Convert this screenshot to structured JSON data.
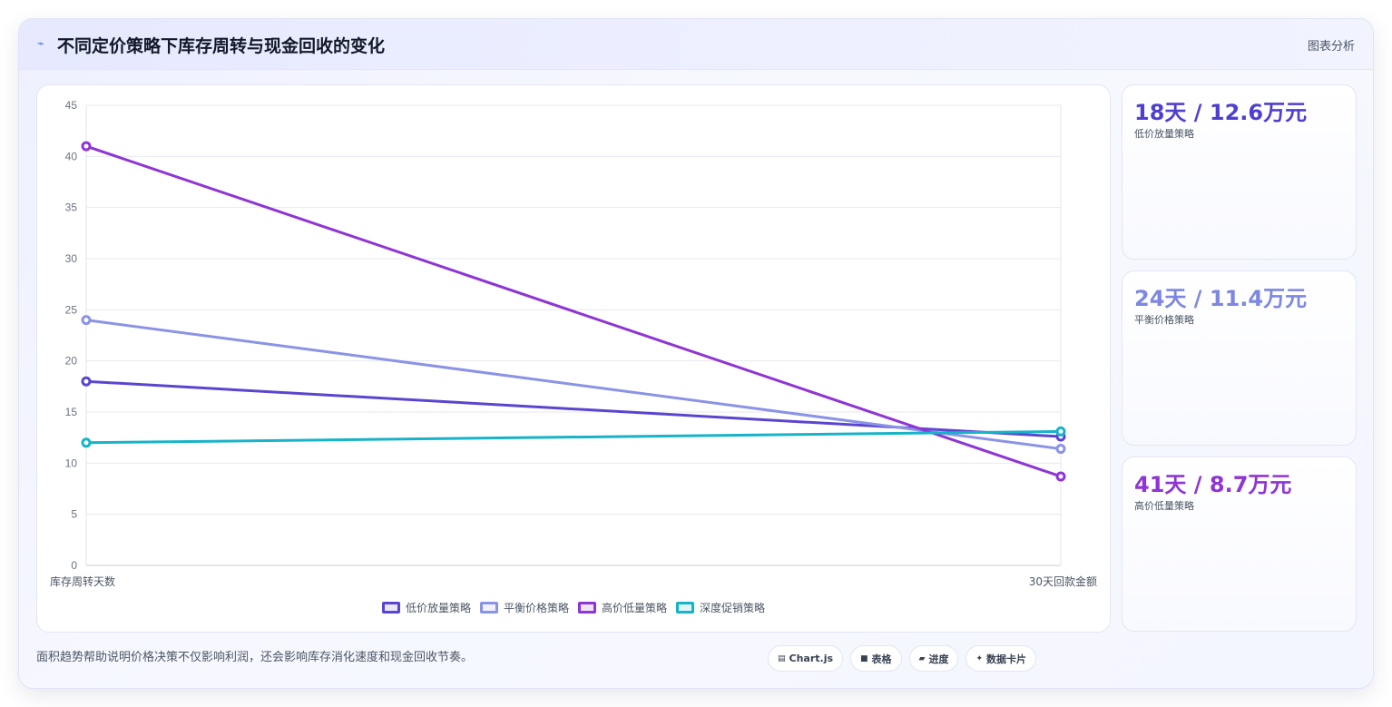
{
  "header": {
    "title": "不同定价策略下库存周转与现金回收的变化",
    "tag": "图表分析"
  },
  "chart_data": {
    "type": "line",
    "categories": [
      "库存周转天数",
      "30天回款金额"
    ],
    "ylim": [
      0,
      45
    ],
    "yticks": [
      0,
      5,
      10,
      15,
      20,
      25,
      30,
      35,
      40,
      45
    ],
    "grid": true,
    "legend_position": "bottom",
    "series": [
      {
        "name": "低价放量策略",
        "values": [
          18,
          12.6
        ],
        "color": "#5b45d0"
      },
      {
        "name": "平衡价格策略",
        "values": [
          24,
          11.4
        ],
        "color": "#8b93e6"
      },
      {
        "name": "高价低量策略",
        "values": [
          41,
          8.7
        ],
        "color": "#8e35d4"
      },
      {
        "name": "深度促销策略",
        "values": [
          12,
          13.1
        ],
        "color": "#16b3c9"
      }
    ]
  },
  "stats": [
    {
      "value": "18天 / 12.6万元",
      "label": "低价放量策略",
      "color": "#4f3fcf"
    },
    {
      "value": "24天 / 11.4万元",
      "label": "平衡价格策略",
      "color": "#7d87e3"
    },
    {
      "value": "41天 / 8.7万元",
      "label": "高价低量策略",
      "color": "#8e35d4"
    }
  ],
  "footer": {
    "note": "面积趋势帮助说明价格决策不仅影响利润，还会影响库存消化速度和现金回收节奏。",
    "chips": [
      {
        "icon": "chart-icon",
        "label": "Chart.js"
      },
      {
        "icon": "table-icon",
        "label": "表格"
      },
      {
        "icon": "progress-icon",
        "label": "进度"
      },
      {
        "icon": "sparkle-icon",
        "label": "数据卡片"
      }
    ]
  }
}
